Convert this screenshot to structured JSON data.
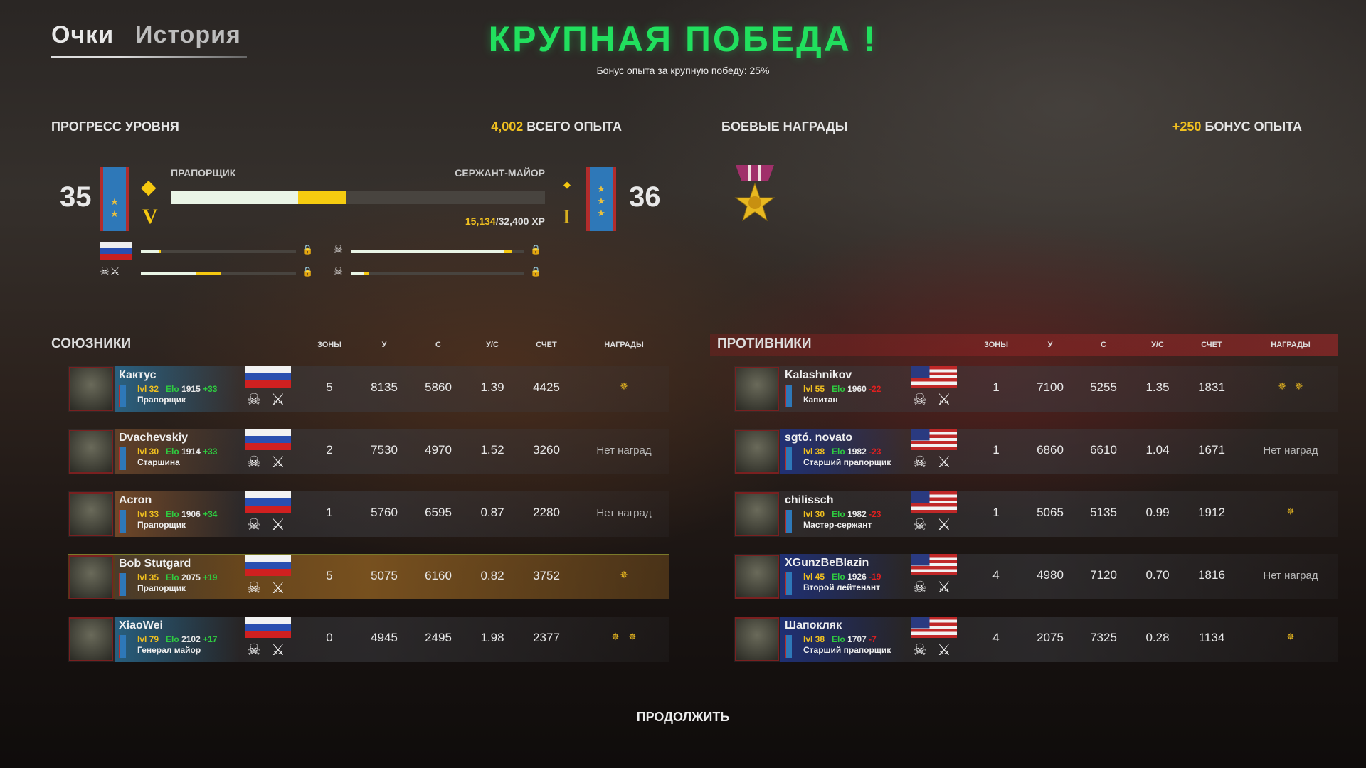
{
  "tabs": [
    {
      "label": "Очки",
      "active": true
    },
    {
      "label": "История",
      "active": false
    }
  ],
  "title": "КРУПНАЯ ПОБЕДА !",
  "subtitle": "Бонус опыта за крупную победу: 25%",
  "level_progress": {
    "heading": "ПРОГРЕСС УРОВНЯ",
    "total_xp_value": "4,002",
    "total_xp_label": " ВСЕГО ОПЫТА",
    "current_level": "35",
    "next_level": "36",
    "current_rank": "ПРАПОРЩИК",
    "next_rank": "СЕРЖАНТ-МАЙОР",
    "current_tier": "V",
    "next_tier": "I",
    "xp_current": "15,134",
    "xp_total": "/32,400 XP",
    "bar_previous_fraction": 0.34,
    "bar_gained_fraction": 0.467,
    "mini_bars": [
      {
        "icon": "russia-flag-icon",
        "prev": 0.12,
        "gain": 0.13
      },
      {
        "icon": "division-emblem-icon",
        "prev": 0.88,
        "gain": 0.93
      },
      {
        "icon": "division-emblems-icon",
        "prev": 0.36,
        "gain": 0.52
      },
      {
        "icon": "division-emblem-icon",
        "prev": 0.07,
        "gain": 0.1
      }
    ]
  },
  "combat_awards": {
    "heading": "БОЕВЫЕ НАГРАДЫ",
    "bonus_value": "+250",
    "bonus_label": " БОНУС ОПЫТА"
  },
  "columns": [
    "ЗОНЫ",
    "У",
    "С",
    "У/С",
    "СЧЕТ",
    "НАГРАДЫ"
  ],
  "no_awards": "Нет наград",
  "colors": {
    "title": "#21e05e",
    "gold": "#f0c020",
    "elo_up": "#2ecc40",
    "elo_down": "#e02020"
  },
  "allies": {
    "heading": "СОЮЗНИКИ",
    "players": [
      {
        "name": "Кактус",
        "lvl": "lvl 32",
        "elo": "1915",
        "delta": "+33",
        "rank": "Прапорщик",
        "zones": "5",
        "kills": "8135",
        "deaths": "5860",
        "kd": "1.39",
        "score": "4425",
        "awards": 1
      },
      {
        "name": "Dvachevskiy",
        "lvl": "lvl 30",
        "elo": "1914",
        "delta": "+33",
        "rank": "Старшина",
        "zones": "2",
        "kills": "7530",
        "deaths": "4970",
        "kd": "1.52",
        "score": "3260",
        "awards": 0
      },
      {
        "name": "Acron",
        "lvl": "lvl 33",
        "elo": "1906",
        "delta": "+34",
        "rank": "Прапорщик",
        "zones": "1",
        "kills": "5760",
        "deaths": "6595",
        "kd": "0.87",
        "score": "2280",
        "awards": 0
      },
      {
        "name": "Bob Stutgard",
        "lvl": "lvl 35",
        "elo": "2075",
        "delta": "+19",
        "rank": "Прапорщик",
        "zones": "5",
        "kills": "5075",
        "deaths": "6160",
        "kd": "0.82",
        "score": "3752",
        "awards": 1,
        "self": true
      },
      {
        "name": "XiaoWei",
        "lvl": "lvl 79",
        "elo": "2102",
        "delta": "+17",
        "rank": "Генерал майор",
        "zones": "0",
        "kills": "4945",
        "deaths": "2495",
        "kd": "1.98",
        "score": "2377",
        "awards": 2
      }
    ]
  },
  "enemies": {
    "heading": "ПРОТИВНИКИ",
    "players": [
      {
        "name": "Kalashnikov",
        "lvl": "lvl 55",
        "elo": "1960",
        "delta": "-22",
        "rank": "Капитан",
        "zones": "1",
        "kills": "7100",
        "deaths": "5255",
        "kd": "1.35",
        "score": "1831",
        "awards": 2
      },
      {
        "name": "sgtó. novato",
        "lvl": "lvl 38",
        "elo": "1982",
        "delta": "-23",
        "rank": "Старший прапорщик",
        "zones": "1",
        "kills": "6860",
        "deaths": "6610",
        "kd": "1.04",
        "score": "1671",
        "awards": 0
      },
      {
        "name": "chilissch",
        "lvl": "lvl 30",
        "elo": "1982",
        "delta": "-23",
        "rank": "Мастер-сержант",
        "zones": "1",
        "kills": "5065",
        "deaths": "5135",
        "kd": "0.99",
        "score": "1912",
        "awards": 1
      },
      {
        "name": "XGunzBeBlazin",
        "lvl": "lvl 45",
        "elo": "1926",
        "delta": "-19",
        "rank": "Второй лейтенант",
        "zones": "4",
        "kills": "4980",
        "deaths": "7120",
        "kd": "0.70",
        "score": "1816",
        "awards": 0
      },
      {
        "name": "Шапокляк",
        "lvl": "lvl 38",
        "elo": "1707",
        "delta": "-7",
        "rank": "Старший прапорщик",
        "zones": "4",
        "kills": "2075",
        "deaths": "7325",
        "kd": "0.28",
        "score": "1134",
        "awards": 1
      }
    ]
  },
  "elo_label": "Elo",
  "continue_label": "ПРОДОЛЖИТЬ"
}
